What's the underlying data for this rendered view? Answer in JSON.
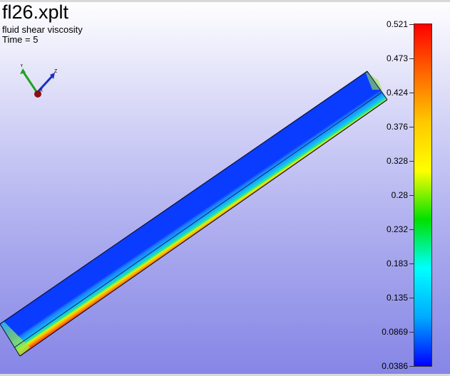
{
  "viewer": {
    "title": "fl26.xplt",
    "variable": "fluid shear viscosity",
    "time_label": "Time = 5"
  },
  "triad": {
    "axes": [
      {
        "label": "Y",
        "color": "#1fa21f"
      },
      {
        "label": "Z",
        "color": "#1a2fc4"
      },
      {
        "label": "X",
        "color": "#8b0f0f"
      }
    ]
  },
  "legend": {
    "min": 0.0386,
    "max": 0.521,
    "ticks": [
      "0.521",
      "0.473",
      "0.424",
      "0.376",
      "0.328",
      "0.28",
      "0.232",
      "0.183",
      "0.135",
      "0.0869",
      "0.0386"
    ],
    "colors": [
      "#ff0000",
      "#ff6600",
      "#ffc800",
      "#ffff00",
      "#00e000",
      "#00ffff",
      "#00aaff",
      "#0000ff"
    ]
  },
  "colors": {
    "background_top": "#ffffff",
    "background_bottom": "#8585e6"
  }
}
